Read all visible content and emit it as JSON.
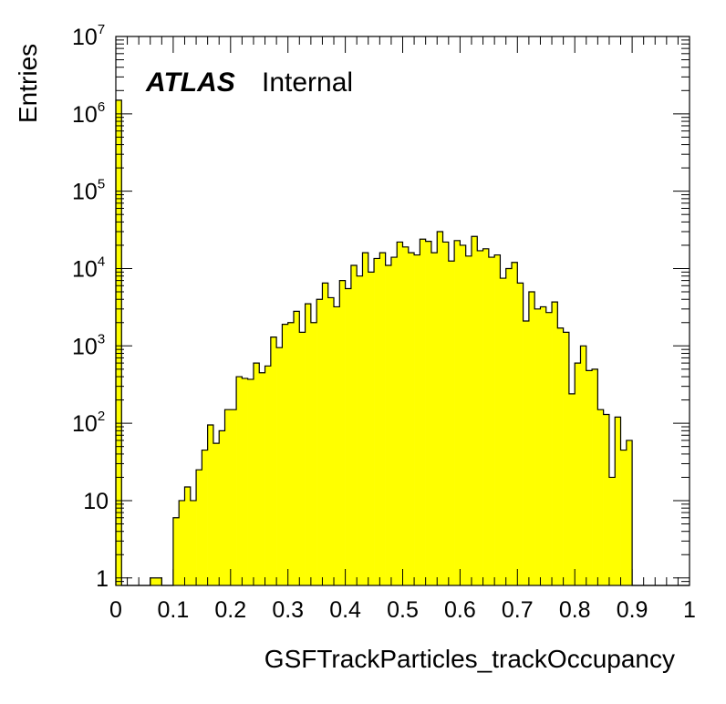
{
  "chart_data": {
    "type": "bar",
    "subtype": "histogram",
    "xlabel": "GSFTrackParticles_trackOccupancy",
    "ylabel": "Entries",
    "annotation": {
      "atlas": "ATLAS",
      "label": "Internal"
    },
    "xlim": [
      0,
      1
    ],
    "ylim": [
      0.8,
      10000000
    ],
    "y_scale": "log",
    "grid": false,
    "fill_color": "#ffff00",
    "line_color": "#000000",
    "x_ticks": [
      0,
      0.1,
      0.2,
      0.3,
      0.4,
      0.5,
      0.6,
      0.7,
      0.8,
      0.9,
      1
    ],
    "x_tick_labels": [
      "0",
      "0.1",
      "0.2",
      "0.3",
      "0.4",
      "0.5",
      "0.6",
      "0.7",
      "0.8",
      "0.9",
      "1"
    ],
    "y_ticks": [
      {
        "value": 1,
        "base": "1",
        "exp": ""
      },
      {
        "value": 10,
        "base": "10",
        "exp": ""
      },
      {
        "value": 100,
        "base": "10",
        "exp": "2"
      },
      {
        "value": 1000,
        "base": "10",
        "exp": "3"
      },
      {
        "value": 10000,
        "base": "10",
        "exp": "4"
      },
      {
        "value": 100000,
        "base": "10",
        "exp": "5"
      },
      {
        "value": 1000000,
        "base": "10",
        "exp": "6"
      },
      {
        "value": 10000000,
        "base": "10",
        "exp": "7"
      }
    ],
    "bin_width": 0.01,
    "x": [
      0.0,
      0.01,
      0.02,
      0.03,
      0.04,
      0.05,
      0.06,
      0.07,
      0.08,
      0.09,
      0.1,
      0.11,
      0.12,
      0.13,
      0.14,
      0.15,
      0.16,
      0.17,
      0.18,
      0.19,
      0.2,
      0.21,
      0.22,
      0.23,
      0.24,
      0.25,
      0.26,
      0.27,
      0.28,
      0.29,
      0.3,
      0.31,
      0.32,
      0.33,
      0.34,
      0.35,
      0.36,
      0.37,
      0.38,
      0.39,
      0.4,
      0.41,
      0.42,
      0.43,
      0.44,
      0.45,
      0.46,
      0.47,
      0.48,
      0.49,
      0.5,
      0.51,
      0.52,
      0.53,
      0.54,
      0.55,
      0.56,
      0.57,
      0.58,
      0.59,
      0.6,
      0.61,
      0.62,
      0.63,
      0.64,
      0.65,
      0.66,
      0.67,
      0.68,
      0.69,
      0.7,
      0.71,
      0.72,
      0.73,
      0.74,
      0.75,
      0.76,
      0.77,
      0.78,
      0.79,
      0.8,
      0.81,
      0.82,
      0.83,
      0.84,
      0.85,
      0.86,
      0.87,
      0.88,
      0.89,
      0.9,
      0.91,
      0.92,
      0.93,
      0.94,
      0.95,
      0.96,
      0.97,
      0.98,
      0.99
    ],
    "values": [
      1500000,
      0,
      0,
      0,
      0,
      0,
      1,
      1,
      0,
      0,
      6,
      10,
      15,
      10,
      25,
      45,
      95,
      55,
      80,
      150,
      150,
      400,
      380,
      370,
      600,
      450,
      550,
      1300,
      950,
      1900,
      2000,
      2800,
      1500,
      3500,
      2000,
      4000,
      6500,
      4200,
      3200,
      7000,
      5500,
      11000,
      8000,
      16000,
      9000,
      13500,
      16000,
      11000,
      14000,
      22000,
      19000,
      16000,
      15000,
      24000,
      22500,
      16000,
      30000,
      22000,
      12500,
      23000,
      20000,
      14500,
      26000,
      17000,
      18000,
      14000,
      15000,
      7500,
      10000,
      12000,
      6500,
      2100,
      5000,
      3000,
      3200,
      2700,
      3700,
      1700,
      1500,
      240,
      600,
      1000,
      480,
      500,
      150,
      130,
      20,
      120,
      45,
      60,
      0,
      0,
      0,
      0,
      0,
      0,
      0,
      0,
      0,
      0
    ]
  }
}
